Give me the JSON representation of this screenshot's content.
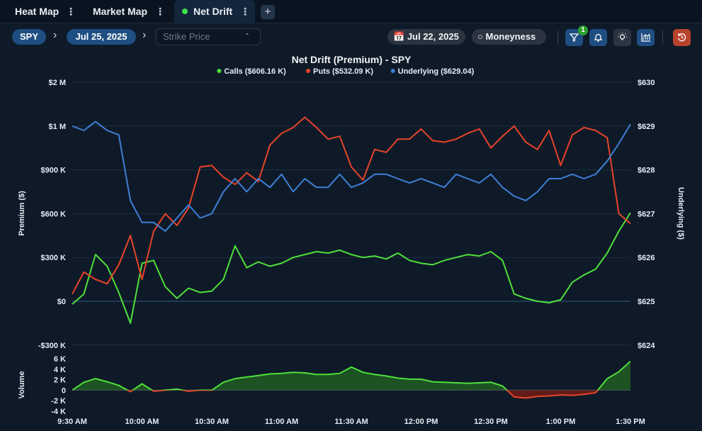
{
  "tabs": [
    {
      "label": "Heat Map",
      "active": false
    },
    {
      "label": "Market Map",
      "active": false
    },
    {
      "label": "Net Drift",
      "active": true
    }
  ],
  "add_tab_label": "+",
  "toolbar": {
    "ticker": "SPY",
    "expiry": "Jul 25, 2025",
    "strike_placeholder": "Strike Price",
    "date": "Jul 22, 2025",
    "moneyness": "Moneyness",
    "filter_count": "1"
  },
  "colors": {
    "calls": "#4fe03a",
    "puts": "#e8442a",
    "underlying": "#3f7fd6",
    "accent": "#1e4e82"
  },
  "chart_data": {
    "type": "line",
    "title": "Net Drift (Premium) - SPY",
    "legend": [
      {
        "label": "Calls ($606.16 K)",
        "color": "#4fe03a"
      },
      {
        "label": "Puts ($532.09 K)",
        "color": "#e8442a"
      },
      {
        "label": "Underlying ($629.04)",
        "color": "#3f7fd6"
      }
    ],
    "legend_placement": "top-center",
    "ylabel_left": "Premium ($)",
    "ylabel_right": "Underlying ($)",
    "ylabel_volume": "Volume",
    "left_ticks": [
      "$2 M",
      "$1 M",
      "$900 K",
      "$600 K",
      "$300 K",
      "$0",
      "-$300 K"
    ],
    "right_ticks": [
      "$630",
      "$629",
      "$628",
      "$627",
      "$626",
      "$625",
      "$624"
    ],
    "volume_ticks": [
      "6 K",
      "4 K",
      "2 K",
      "0",
      "-2 K",
      "-4 K"
    ],
    "x_ticks": [
      "9:30 AM",
      "10:00 AM",
      "10:30 AM",
      "11:00 AM",
      "11:30 AM",
      "12:00 PM",
      "12:30 PM",
      "1:00 PM",
      "1:30 PM"
    ],
    "x_minutes": [
      0,
      5,
      10,
      15,
      20,
      25,
      30,
      35,
      40,
      45,
      50,
      55,
      60,
      65,
      70,
      75,
      80,
      85,
      90,
      95,
      100,
      105,
      110,
      115,
      120,
      125,
      130,
      135,
      140,
      145,
      150,
      155,
      160,
      165,
      170,
      175,
      180,
      185,
      190,
      195,
      200,
      205,
      210,
      215,
      220,
      225,
      230,
      235,
      240
    ],
    "left_ylim": [
      -300000,
      1500000
    ],
    "right_ylim": [
      624,
      630
    ],
    "volume_ylim": [
      -4000,
      6000
    ],
    "grid": true,
    "series": [
      {
        "name": "Calls",
        "values": [
          -20000,
          50000,
          320000,
          240000,
          60000,
          -150000,
          260000,
          280000,
          100000,
          20000,
          90000,
          60000,
          70000,
          150000,
          380000,
          230000,
          270000,
          240000,
          260000,
          300000,
          320000,
          340000,
          330000,
          350000,
          320000,
          300000,
          310000,
          290000,
          330000,
          280000,
          260000,
          250000,
          280000,
          300000,
          320000,
          310000,
          340000,
          280000,
          50000,
          20000,
          0,
          -10000,
          10000,
          130000,
          180000,
          220000,
          330000,
          480000,
          606160
        ]
      },
      {
        "name": "Puts",
        "values": [
          50000,
          200000,
          150000,
          120000,
          250000,
          450000,
          150000,
          480000,
          600000,
          520000,
          640000,
          920000,
          930000,
          850000,
          800000,
          880000,
          820000,
          1070000,
          1150000,
          1190000,
          1260000,
          1190000,
          1110000,
          1130000,
          920000,
          830000,
          1040000,
          1020000,
          1110000,
          1110000,
          1180000,
          1100000,
          1090000,
          1110000,
          1150000,
          1180000,
          1050000,
          1130000,
          1200000,
          1090000,
          1040000,
          1170000,
          930000,
          1140000,
          1190000,
          1170000,
          1120000,
          600000,
          532090
        ]
      },
      {
        "name": "Underlying",
        "values": [
          629.0,
          628.9,
          629.1,
          628.9,
          628.8,
          627.3,
          626.8,
          626.8,
          626.6,
          626.9,
          627.2,
          626.9,
          627.0,
          627.5,
          627.8,
          627.5,
          627.8,
          627.6,
          627.9,
          627.5,
          627.8,
          627.6,
          627.6,
          627.9,
          627.6,
          627.7,
          627.9,
          627.9,
          627.8,
          627.7,
          627.8,
          627.7,
          627.6,
          627.9,
          627.8,
          627.7,
          627.9,
          627.6,
          627.4,
          627.3,
          627.5,
          627.8,
          627.8,
          627.9,
          627.8,
          627.9,
          628.2,
          628.6,
          629.04
        ]
      }
    ],
    "volume_series": {
      "name": "Volume",
      "values": [
        0,
        1500,
        2200,
        1600,
        900,
        -300,
        1200,
        -200,
        0,
        200,
        -200,
        0,
        0,
        1500,
        2200,
        2500,
        2800,
        3100,
        3200,
        3400,
        3300,
        3000,
        3000,
        3200,
        4400,
        3400,
        3000,
        2700,
        2300,
        2100,
        2100,
        1600,
        1500,
        1400,
        1300,
        1400,
        1500,
        800,
        -1300,
        -1500,
        -1200,
        -1100,
        -900,
        -1000,
        -800,
        -500,
        2200,
        3500,
        5500
      ]
    }
  }
}
